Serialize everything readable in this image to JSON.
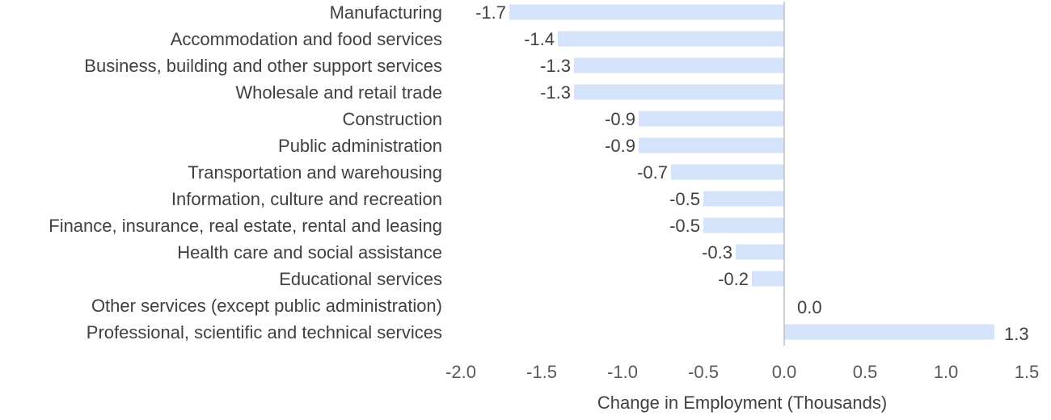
{
  "chart_data": {
    "type": "bar",
    "orientation": "horizontal",
    "title": "",
    "xlabel": "Change in Employment (Thousands)",
    "ylabel": "",
    "xlim": [
      -2.0,
      1.5
    ],
    "ticks": [
      "-2.0",
      "-1.5",
      "-1.0",
      "-0.5",
      "0.0",
      "0.5",
      "1.0",
      "1.5"
    ],
    "tick_values": [
      -2.0,
      -1.5,
      -1.0,
      -0.5,
      0.0,
      0.5,
      1.0,
      1.5
    ],
    "grid": false,
    "legend": "none",
    "bar_color": "#d6e4fb",
    "axis_color": "#bfbfbf",
    "categories": [
      "Manufacturing",
      "Accommodation and food services",
      "Business, building and other support services",
      "Wholesale and retail trade",
      "Construction",
      "Public administration",
      "Transportation and warehousing",
      "Information, culture and recreation",
      "Finance, insurance, real estate, rental and leasing",
      "Health care and social assistance",
      "Educational services",
      "Other services (except public administration)",
      "Professional, scientific and technical services"
    ],
    "values": [
      -1.7,
      -1.4,
      -1.3,
      -1.3,
      -0.9,
      -0.9,
      -0.7,
      -0.5,
      -0.5,
      -0.3,
      -0.2,
      0.0,
      1.3
    ],
    "value_labels": [
      "-1.7",
      "-1.4",
      "-1.3",
      "-1.3",
      "-0.9",
      "-0.9",
      "-0.7",
      "-0.5",
      "-0.5",
      "-0.3",
      "-0.2",
      "0.0",
      "1.3"
    ]
  }
}
